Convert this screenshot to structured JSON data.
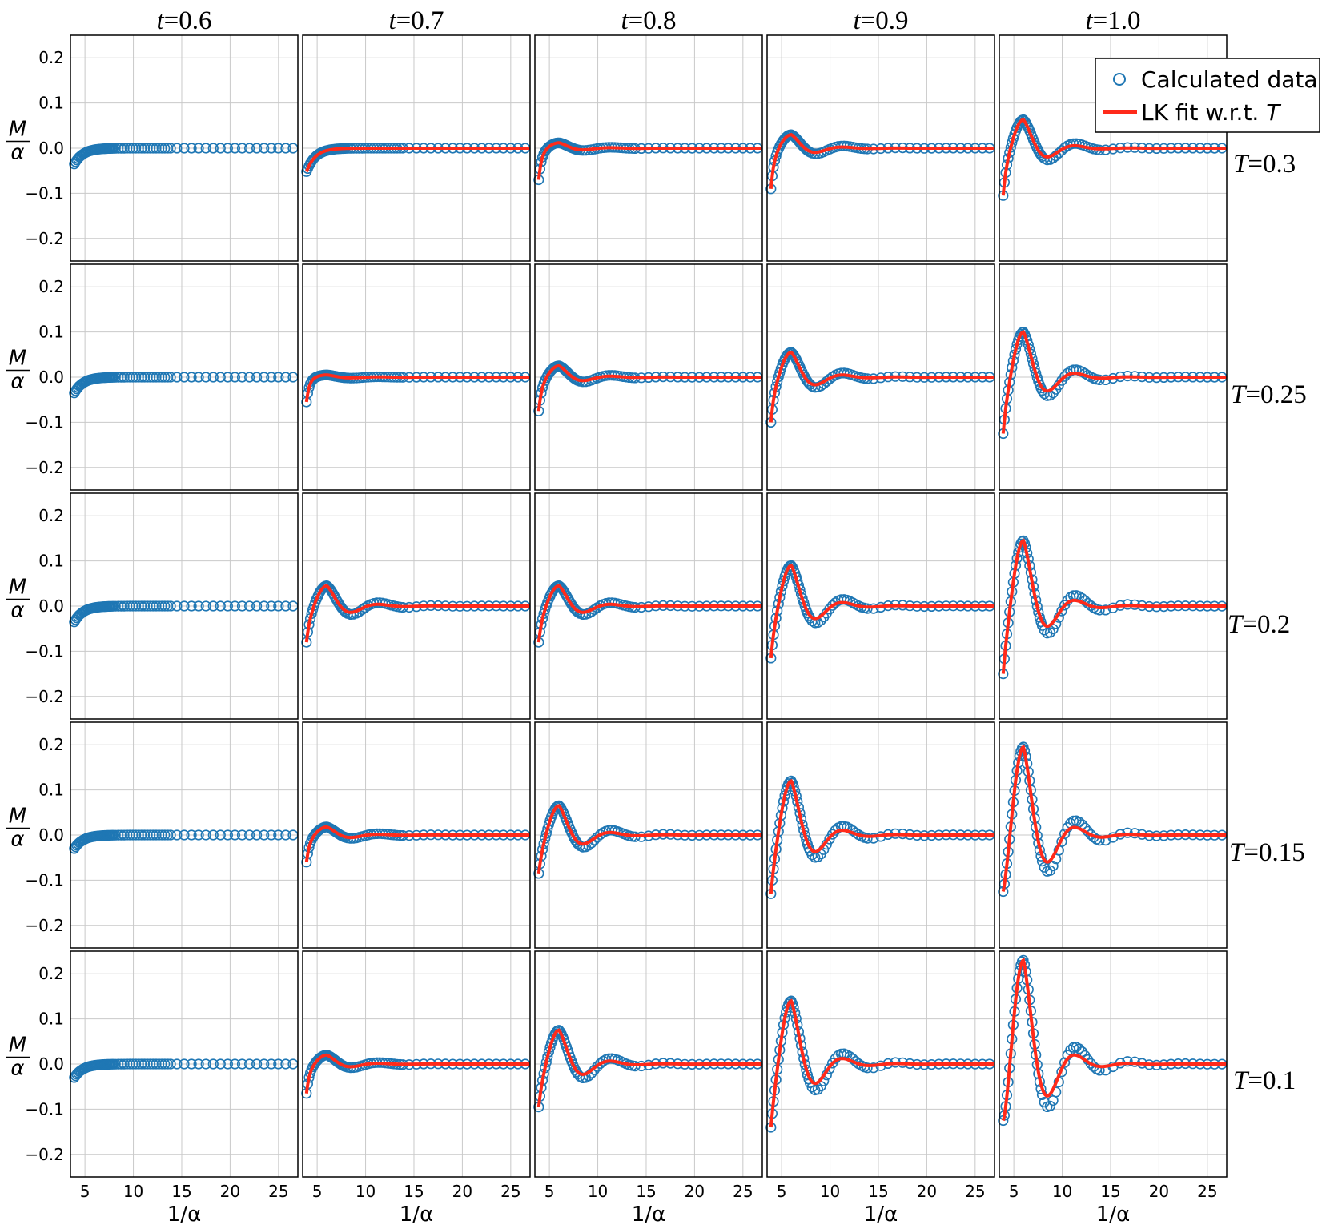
{
  "chart_data": {
    "type": "scatter",
    "layout": "grid of 5 rows x 5 columns",
    "column_labels": [
      "t=0.6",
      "t=0.7",
      "t=0.8",
      "t=0.9",
      "t=1.0"
    ],
    "columns": [
      {
        "name": "t",
        "value": "0.6"
      },
      {
        "name": "t",
        "value": "0.7"
      },
      {
        "name": "t",
        "value": "0.8"
      },
      {
        "name": "t",
        "value": "0.9"
      },
      {
        "name": "t",
        "value": "1.0"
      }
    ],
    "rows": [
      {
        "name": "T",
        "value": "0.3"
      },
      {
        "name": "T",
        "value": "0.25"
      },
      {
        "name": "T",
        "value": "0.2"
      },
      {
        "name": "T",
        "value": "0.15"
      },
      {
        "name": "T",
        "value": "0.1"
      }
    ],
    "xlabel": "1/α",
    "ylabel": "M/α",
    "xlim": [
      3.5,
      27
    ],
    "ylim": [
      -0.25,
      0.25
    ],
    "xticks": [
      "5",
      "10",
      "15",
      "20",
      "25"
    ],
    "yticks": [
      "−0.2",
      "−0.1",
      "0.0",
      "0.1",
      "0.2"
    ],
    "grid": true,
    "legend": {
      "placement": "top-right",
      "entries": [
        "Calculated data",
        "LK fit w.r.t. T"
      ]
    },
    "series_colors": {
      "Calculated data": "#1f77b4",
      "LK fit w.r.t. T": "#ff2a1a"
    },
    "note_fit_present_in_first_column": false,
    "panels": [
      [
        {
          "row": "T=0.3",
          "col": "t=0.6",
          "x_start": 3.9,
          "y_start": -0.035,
          "peak": 0.0,
          "oscillation_amplitude": 0.0,
          "fit_shown": false
        },
        {
          "row": "T=0.3",
          "col": "t=0.7",
          "x_start": 3.9,
          "y_start": -0.052,
          "peak": 0.0,
          "oscillation_amplitude": 0.0,
          "fit_shown": true
        },
        {
          "row": "T=0.3",
          "col": "t=0.8",
          "x_start": 3.9,
          "y_start": -0.07,
          "peak": 0.012,
          "oscillation_amplitude": 0.012,
          "fit_shown": true
        },
        {
          "row": "T=0.3",
          "col": "t=0.9",
          "x_start": 3.9,
          "y_start": -0.09,
          "peak": 0.03,
          "oscillation_amplitude": 0.03,
          "fit_shown": true
        },
        {
          "row": "T=0.3",
          "col": "t=1.0",
          "x_start": 3.9,
          "y_start": -0.105,
          "peak": 0.063,
          "oscillation_amplitude": 0.063,
          "fit_shown": true
        }
      ],
      [
        {
          "row": "T=0.25",
          "col": "t=0.6",
          "x_start": 3.9,
          "y_start": -0.035,
          "peak": 0.0,
          "oscillation_amplitude": 0.0,
          "fit_shown": false
        },
        {
          "row": "T=0.25",
          "col": "t=0.7",
          "x_start": 3.9,
          "y_start": -0.055,
          "peak": 0.005,
          "oscillation_amplitude": 0.005,
          "fit_shown": true
        },
        {
          "row": "T=0.25",
          "col": "t=0.8",
          "x_start": 3.9,
          "y_start": -0.075,
          "peak": 0.025,
          "oscillation_amplitude": 0.025,
          "fit_shown": true
        },
        {
          "row": "T=0.25",
          "col": "t=0.9",
          "x_start": 3.9,
          "y_start": -0.1,
          "peak": 0.055,
          "oscillation_amplitude": 0.055,
          "fit_shown": true
        },
        {
          "row": "T=0.25",
          "col": "t=1.0",
          "x_start": 3.9,
          "y_start": -0.125,
          "peak": 0.1,
          "oscillation_amplitude": 0.1,
          "fit_shown": true
        }
      ],
      [
        {
          "row": "T=0.2",
          "col": "t=0.6",
          "x_start": 3.9,
          "y_start": -0.035,
          "peak": 0.0,
          "oscillation_amplitude": 0.0,
          "fit_shown": false
        },
        {
          "row": "T=0.2",
          "col": "t=0.7",
          "x_start": 3.9,
          "y_start": -0.08,
          "peak": 0.045,
          "oscillation_amplitude": 0.045,
          "fit_shown": true
        },
        {
          "row": "T=0.2",
          "col": "t=0.8",
          "x_start": 3.9,
          "y_start": -0.08,
          "peak": 0.045,
          "oscillation_amplitude": 0.045,
          "fit_shown": true
        },
        {
          "row": "T=0.2",
          "col": "t=0.9",
          "x_start": 3.9,
          "y_start": -0.115,
          "peak": 0.09,
          "oscillation_amplitude": 0.09,
          "fit_shown": true
        },
        {
          "row": "T=0.2",
          "col": "t=1.0",
          "x_start": 3.9,
          "y_start": -0.15,
          "peak": 0.145,
          "oscillation_amplitude": 0.145,
          "fit_shown": true
        }
      ],
      [
        {
          "row": "T=0.15",
          "col": "t=0.6",
          "x_start": 3.9,
          "y_start": -0.03,
          "peak": 0.0,
          "oscillation_amplitude": 0.0,
          "fit_shown": false
        },
        {
          "row": "T=0.15",
          "col": "t=0.7",
          "x_start": 3.9,
          "y_start": -0.06,
          "peak": 0.018,
          "oscillation_amplitude": 0.018,
          "fit_shown": true
        },
        {
          "row": "T=0.15",
          "col": "t=0.8",
          "x_start": 3.9,
          "y_start": -0.085,
          "peak": 0.065,
          "oscillation_amplitude": 0.065,
          "fit_shown": true
        },
        {
          "row": "T=0.15",
          "col": "t=0.9",
          "x_start": 3.9,
          "y_start": -0.13,
          "peak": 0.12,
          "oscillation_amplitude": 0.12,
          "fit_shown": true
        },
        {
          "row": "T=0.15",
          "col": "t=1.0",
          "x_start": 3.9,
          "y_start": -0.125,
          "peak": 0.195,
          "oscillation_amplitude": 0.195,
          "fit_shown": true
        }
      ],
      [
        {
          "row": "T=0.1",
          "col": "t=0.6",
          "x_start": 3.9,
          "y_start": -0.03,
          "peak": 0.0,
          "oscillation_amplitude": 0.0,
          "fit_shown": false
        },
        {
          "row": "T=0.1",
          "col": "t=0.7",
          "x_start": 3.9,
          "y_start": -0.065,
          "peak": 0.02,
          "oscillation_amplitude": 0.02,
          "fit_shown": true
        },
        {
          "row": "T=0.1",
          "col": "t=0.8",
          "x_start": 3.9,
          "y_start": -0.095,
          "peak": 0.075,
          "oscillation_amplitude": 0.075,
          "fit_shown": true
        },
        {
          "row": "T=0.1",
          "col": "t=0.9",
          "x_start": 3.9,
          "y_start": -0.14,
          "peak": 0.14,
          "oscillation_amplitude": 0.14,
          "fit_shown": true
        },
        {
          "row": "T=0.1",
          "col": "t=1.0",
          "x_start": 3.9,
          "y_start": -0.125,
          "peak": 0.23,
          "oscillation_amplitude": 0.23,
          "fit_shown": true
        }
      ]
    ]
  }
}
